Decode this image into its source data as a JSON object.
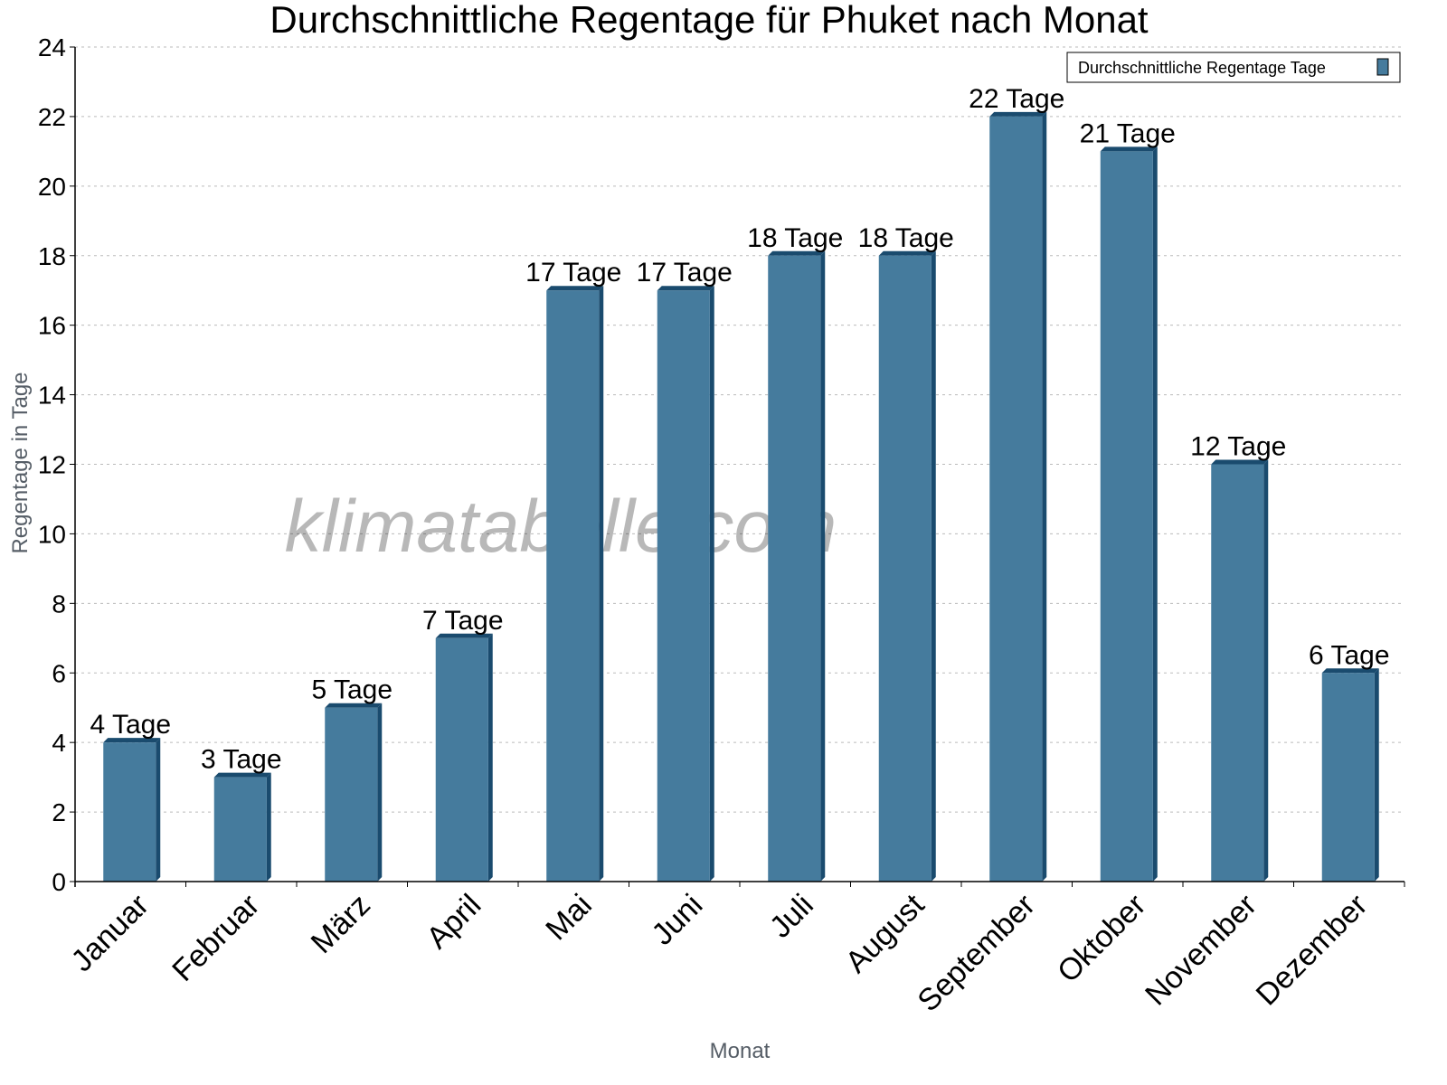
{
  "chart_data": {
    "type": "bar",
    "title": "Durchschnittliche Regentage für Phuket nach Monat",
    "xlabel": "Monat",
    "ylabel": "Regentage in Tage",
    "ylim": [
      0,
      24
    ],
    "yticks": [
      0,
      2,
      4,
      6,
      8,
      10,
      12,
      14,
      16,
      18,
      20,
      22,
      24
    ],
    "grid": true,
    "legend_position": "top-right",
    "categories": [
      "Januar",
      "Februar",
      "März",
      "April",
      "Mai",
      "Juni",
      "Juli",
      "August",
      "September",
      "Oktober",
      "November",
      "Dezember"
    ],
    "series": [
      {
        "name": "Durchschnittliche Regentage Tage",
        "values": [
          4,
          3,
          5,
          7,
          17,
          17,
          18,
          18,
          22,
          21,
          12,
          6
        ],
        "labels": [
          "4 Tage",
          "3 Tage",
          "5 Tage",
          "7 Tage",
          "17 Tage",
          "17 Tage",
          "18 Tage",
          "18 Tage",
          "22 Tage",
          "21 Tage",
          "12 Tage",
          "6 Tage"
        ],
        "color": "#457b9d",
        "side_color": "#1a4b6e"
      }
    ],
    "watermark": "klimatabelle.com"
  }
}
